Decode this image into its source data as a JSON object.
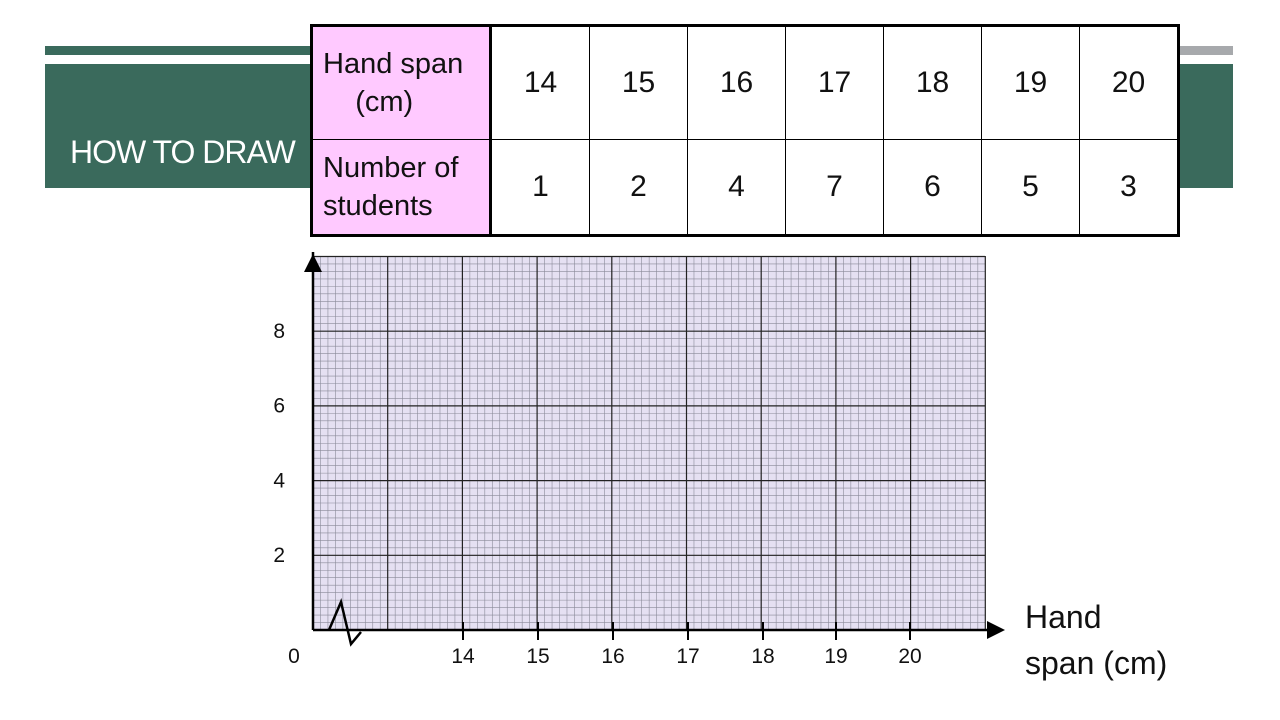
{
  "banner": {
    "title": "HOW TO DRAW"
  },
  "table": {
    "row_labels": [
      "Hand span\n (cm)",
      "Number of\nstudents"
    ]
  },
  "chart_data": {
    "type": "table",
    "categories": [
      "14",
      "15",
      "16",
      "17",
      "18",
      "19",
      "20"
    ],
    "series": [
      {
        "name": "Number of students",
        "values": [
          1,
          2,
          4,
          7,
          6,
          5,
          3
        ]
      }
    ],
    "x_ticks": [
      "14",
      "15",
      "16",
      "17",
      "18",
      "19",
      "20"
    ],
    "y_ticks": [
      "2",
      "4",
      "6",
      "8"
    ],
    "origin_label": "0",
    "xlabel": "Hand\nspan (cm)",
    "ylabel": "",
    "ylim": [
      0,
      10
    ],
    "grid": true,
    "grid_color": "#e5e0f2",
    "axis_break": true
  }
}
